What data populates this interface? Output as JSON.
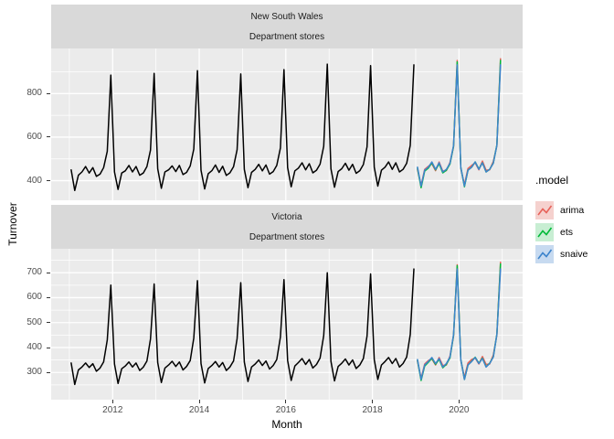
{
  "figure": {
    "background": "#ffffff",
    "panel_bg": "#ebebeb",
    "strip_bg": "#d9d9d9",
    "grid_color": "#ffffff",
    "axis_text_color": "#4d4d4d",
    "tick_color": "#333333"
  },
  "legend": {
    "title": ".model",
    "items": [
      {
        "label": "arima",
        "color": "#e7625a",
        "bg": "#f5d1ce"
      },
      {
        "label": "ets",
        "color": "#00ba38",
        "bg": "#c8eed3"
      },
      {
        "label": "snaive",
        "color": "#3d84cc",
        "bg": "#c7daf0"
      }
    ]
  },
  "chart_data": {
    "type": "line",
    "x_title": "Month",
    "y_title": "Turnover",
    "x_ticks": [
      2012,
      2014,
      2016,
      2018,
      2020
    ],
    "x_minor": [
      2011,
      2013,
      2015,
      2017,
      2019,
      2021
    ],
    "xlim": [
      2010.58,
      2021.47
    ],
    "legend_title": ".model",
    "facets": [
      {
        "strip_line1": "New South Wales",
        "strip_line2": "Department stores",
        "y_ticks": [
          400,
          600,
          800
        ],
        "y_minor": [
          500,
          700,
          900
        ],
        "ylim": [
          310,
          1007
        ],
        "series": [
          {
            "name": "actual",
            "color": "#000000",
            "width": 1.5,
            "start_year": 2011,
            "values": [
              450,
              355,
              425,
              440,
              465,
              435,
              460,
              420,
              430,
              460,
              535,
              885,
              440,
              360,
              435,
              445,
              470,
              440,
              465,
              425,
              435,
              465,
              540,
              893,
              455,
              365,
              440,
              450,
              468,
              442,
              470,
              428,
              438,
              468,
              545,
              905,
              448,
              362,
              432,
              446,
              472,
              438,
              466,
              424,
              436,
              464,
              542,
              890,
              452,
              368,
              438,
              452,
              475,
              445,
              472,
              430,
              442,
              470,
              550,
              910,
              460,
              372,
              445,
              458,
              482,
              450,
              478,
              436,
              448,
              476,
              558,
              935,
              455,
              370,
              442,
              455,
              480,
              448,
              475,
              434,
              446,
              474,
              555,
              928,
              462,
              375,
              448,
              462,
              486,
              452,
              482,
              440,
              452,
              480,
              562,
              932
            ]
          },
          {
            "name": "arima",
            "color": "#e7625a",
            "width": 1.5,
            "start_year": 2019,
            "values": [
              452,
              378,
              452,
              466,
              478,
              446,
              486,
              444,
              446,
              484,
              556,
              952,
              456,
              382,
              456,
              470,
              482,
              450,
              490,
              448,
              450,
              488,
              560,
              960
            ]
          },
          {
            "name": "ets",
            "color": "#00ba38",
            "width": 1.5,
            "start_year": 2019,
            "values": [
              458,
              368,
              444,
              458,
              482,
              450,
              478,
              436,
              448,
              477,
              558,
              945,
              462,
              372,
              448,
              462,
              486,
              454,
              482,
              440,
              452,
              481,
              563,
              952
            ]
          },
          {
            "name": "snaive",
            "color": "#3d84cc",
            "width": 1.5,
            "start_year": 2019,
            "values": [
              462,
              375,
              448,
              462,
              486,
              452,
              482,
              440,
              452,
              480,
              562,
              932,
              462,
              375,
              448,
              462,
              486,
              452,
              482,
              440,
              452,
              480,
              562,
              932
            ]
          }
        ]
      },
      {
        "strip_line1": "Victoria",
        "strip_line2": "Department stores",
        "y_ticks": [
          300,
          400,
          500,
          600,
          700
        ],
        "y_minor": [
          250,
          350,
          450,
          550,
          650,
          750
        ],
        "ylim": [
          191,
          796
        ],
        "series": [
          {
            "name": "actual",
            "color": "#000000",
            "width": 1.5,
            "start_year": 2011,
            "values": [
              338,
              252,
              310,
              322,
              338,
              320,
              335,
              305,
              318,
              342,
              430,
              650,
              334,
              256,
              315,
              326,
              342,
              322,
              338,
              308,
              321,
              346,
              434,
              655,
              340,
              260,
              318,
              330,
              345,
              324,
              342,
              310,
              324,
              348,
              438,
              668,
              336,
              258,
              316,
              328,
              344,
              322,
              340,
              308,
              322,
              346,
              436,
              660,
              342,
              264,
              322,
              334,
              350,
              328,
              346,
              314,
              328,
              352,
              442,
              672,
              348,
              268,
              326,
              340,
              356,
              332,
              352,
              318,
              332,
              358,
              448,
              700,
              345,
              266,
              324,
              337,
              354,
              330,
              350,
              316,
              330,
              356,
              446,
              695,
              352,
              272,
              330,
              344,
              360,
              336,
              356,
              322,
              336,
              362,
              452,
              715
            ]
          },
          {
            "name": "arima",
            "color": "#e7625a",
            "width": 1.5,
            "start_year": 2019,
            "values": [
              346,
              276,
              334,
              348,
              354,
              330,
              360,
              328,
              330,
              366,
              446,
              732,
              350,
              280,
              338,
              352,
              358,
              334,
              364,
              332,
              334,
              370,
              450,
              742
            ]
          },
          {
            "name": "ets",
            "color": "#00ba38",
            "width": 1.5,
            "start_year": 2019,
            "values": [
              349,
              268,
              326,
              341,
              357,
              333,
              353,
              319,
              333,
              359,
              449,
              728,
              353,
              272,
              330,
              345,
              361,
              337,
              357,
              323,
              337,
              363,
              453,
              735
            ]
          },
          {
            "name": "snaive",
            "color": "#3d84cc",
            "width": 1.5,
            "start_year": 2019,
            "values": [
              352,
              272,
              330,
              344,
              360,
              336,
              356,
              322,
              336,
              362,
              452,
              715,
              352,
              272,
              330,
              344,
              360,
              336,
              356,
              322,
              336,
              362,
              452,
              715
            ]
          }
        ]
      }
    ]
  }
}
